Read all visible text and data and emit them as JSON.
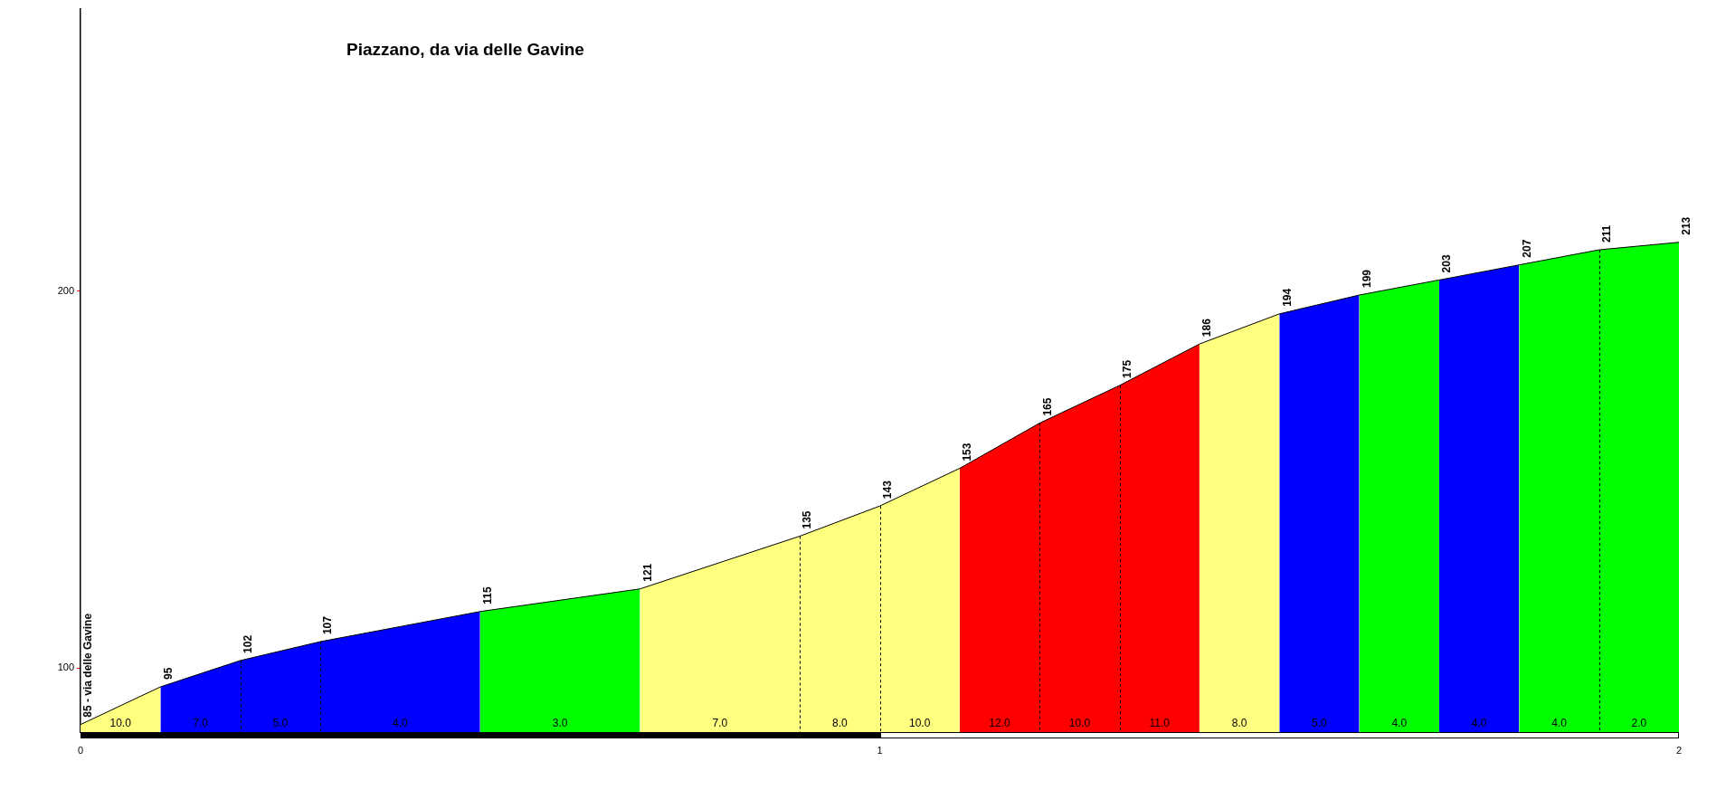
{
  "chart_data": {
    "type": "area",
    "title": "Piazzano, da via delle Gavine",
    "series": [
      {
        "color": "#ffff80",
        "x": [
          0,
          0.1
        ],
        "values": [
          85,
          95
        ],
        "value_labels": [
          "85 - via delle Gavine",
          "95"
        ]
      },
      {
        "color": "#0000ff",
        "x": [
          0.1,
          0.2,
          0.3,
          0.4,
          0.5
        ],
        "values": [
          95,
          102,
          107,
          111,
          115
        ],
        "value_labels": [
          null,
          "102",
          "107",
          null,
          "115"
        ]
      },
      {
        "color": "#00ff00",
        "x": [
          0.5,
          0.6,
          0.7
        ],
        "values": [
          115,
          118,
          121
        ],
        "value_labels": [
          null,
          null,
          "121"
        ]
      },
      {
        "color": "#ffff80",
        "x": [
          0.7,
          0.8,
          0.9,
          1.0,
          1.1
        ],
        "values": [
          121,
          128,
          135,
          143,
          153
        ],
        "value_labels": [
          null,
          null,
          "135",
          "143",
          "153"
        ]
      },
      {
        "color": "#ff0000",
        "x": [
          1.1,
          1.2,
          1.3,
          1.4
        ],
        "values": [
          153,
          165,
          175,
          186
        ],
        "value_labels": [
          null,
          "165",
          "175",
          "186"
        ]
      },
      {
        "color": "#ffff80",
        "x": [
          1.4,
          1.5
        ],
        "values": [
          186,
          194
        ],
        "value_labels": [
          null,
          "194"
        ]
      },
      {
        "color": "#0000ff",
        "x": [
          1.5,
          1.6
        ],
        "values": [
          194,
          199
        ],
        "value_labels": [
          null,
          "199"
        ]
      },
      {
        "color": "#00ff00",
        "x": [
          1.6,
          1.7
        ],
        "values": [
          199,
          203
        ],
        "value_labels": [
          null,
          "203"
        ]
      },
      {
        "color": "#0000ff",
        "x": [
          1.7,
          1.8
        ],
        "values": [
          203,
          207
        ],
        "value_labels": [
          null,
          "207"
        ]
      },
      {
        "color": "#00ff00",
        "x": [
          1.8,
          1.9,
          2.0
        ],
        "values": [
          207,
          211,
          213
        ],
        "value_labels": [
          null,
          "211",
          "213"
        ]
      }
    ],
    "annotations": [
      "10.0",
      "7.0",
      "5.0",
      "4.0",
      "3.0",
      "7.0",
      "8.0",
      "10.0",
      "12.0",
      "10.0",
      "11.0",
      "8.0",
      "5.0",
      "4.0",
      "4.0",
      "4.0",
      "2.0"
    ],
    "xlim": [
      0,
      2
    ],
    "xticks": [
      0,
      1,
      2
    ],
    "ylim": [
      83,
      275
    ],
    "yticks": [
      100,
      200
    ],
    "grid": false,
    "legend": false,
    "marker": "none",
    "line_style": "solid"
  }
}
